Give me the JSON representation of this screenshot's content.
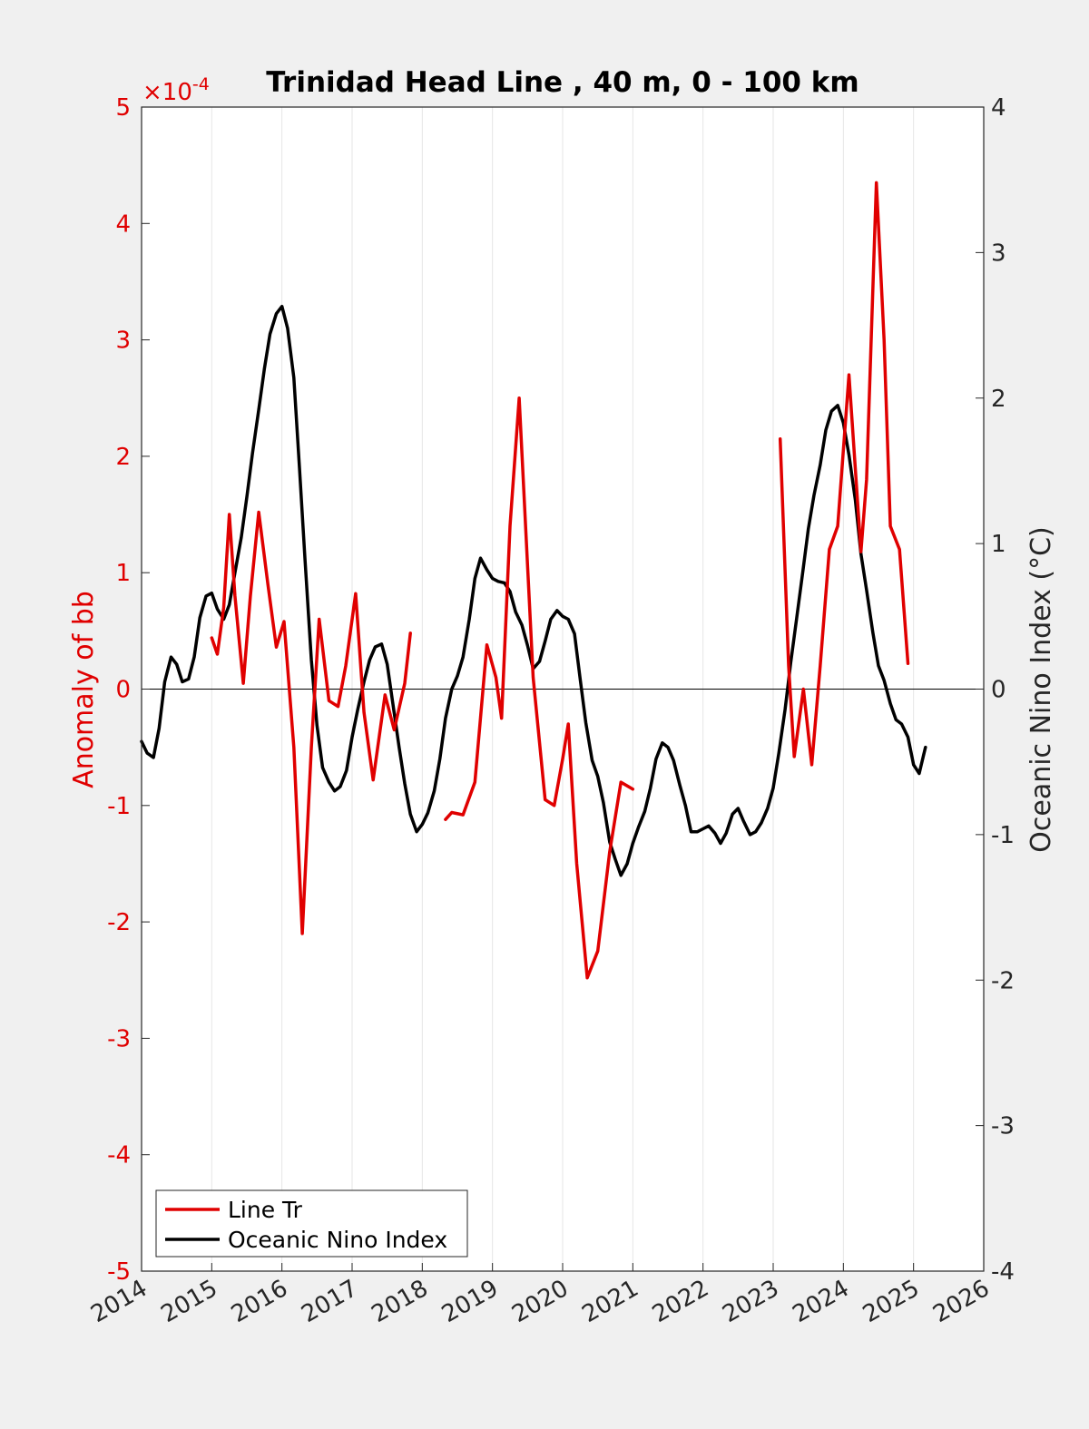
{
  "chart_data": {
    "type": "line",
    "title": "Trinidad Head Line , 40 m, 0 - 100 km",
    "ylabel_left": "Anomaly of bb",
    "ylabel_right": "Oceanic Nino Index (°C)",
    "left_multiplier_base": "×10",
    "left_multiplier_exp": "-4",
    "xlim": [
      2014,
      2026
    ],
    "ylim_left": [
      -5,
      5
    ],
    "ylim_right": [
      -4,
      4
    ],
    "x_ticks": [
      "2014",
      "2015",
      "2016",
      "2017",
      "2018",
      "2019",
      "2020",
      "2021",
      "2022",
      "2023",
      "2024",
      "2025",
      "2026"
    ],
    "y_ticks_left": [
      "5",
      "4",
      "3",
      "2",
      "1",
      "0",
      "-1",
      "-2",
      "-3",
      "-4",
      "-5"
    ],
    "y_ticks_right": [
      "4",
      "3",
      "2",
      "1",
      "0",
      "-1",
      "-2",
      "-3",
      "-4"
    ],
    "grid": "vertical",
    "legend_position": "bottom-left",
    "series": [
      {
        "name": "Line Tr",
        "axis": "left",
        "color": "#e00000",
        "segments": [
          [
            [
              2015.0,
              0.44
            ],
            [
              2015.08,
              0.3
            ],
            [
              2015.17,
              0.7
            ],
            [
              2015.25,
              1.5
            ],
            [
              2015.33,
              0.8
            ],
            [
              2015.45,
              0.05
            ],
            [
              2015.55,
              0.8
            ],
            [
              2015.67,
              1.52
            ],
            [
              2015.8,
              0.9
            ],
            [
              2015.92,
              0.36
            ],
            [
              2016.03,
              0.58
            ],
            [
              2016.17,
              -0.5
            ],
            [
              2016.29,
              -2.1
            ],
            [
              2016.42,
              -0.5
            ],
            [
              2016.53,
              0.6
            ],
            [
              2016.67,
              -0.1
            ],
            [
              2016.8,
              -0.15
            ],
            [
              2016.91,
              0.2
            ],
            [
              2017.05,
              0.82
            ],
            [
              2017.17,
              -0.2
            ],
            [
              2017.3,
              -0.78
            ],
            [
              2017.47,
              -0.05
            ],
            [
              2017.6,
              -0.35
            ],
            [
              2017.75,
              0.05
            ],
            [
              2017.83,
              0.48
            ]
          ],
          [
            [
              2018.33,
              -1.12
            ],
            [
              2018.42,
              -1.06
            ],
            [
              2018.58,
              -1.08
            ],
            [
              2018.75,
              -0.8
            ],
            [
              2018.92,
              0.38
            ],
            [
              2019.05,
              0.1
            ],
            [
              2019.13,
              -0.25
            ],
            [
              2019.25,
              1.4
            ],
            [
              2019.38,
              2.5
            ],
            [
              2019.58,
              0.1
            ],
            [
              2019.75,
              -0.95
            ],
            [
              2019.88,
              -1.0
            ],
            [
              2020.0,
              -0.6
            ],
            [
              2020.08,
              -0.3
            ],
            [
              2020.2,
              -1.5
            ],
            [
              2020.35,
              -2.48
            ],
            [
              2020.5,
              -2.25
            ],
            [
              2020.67,
              -1.4
            ],
            [
              2020.83,
              -0.8
            ],
            [
              2021.0,
              -0.86
            ]
          ],
          [
            [
              2023.1,
              2.15
            ],
            [
              2023.22,
              0.2
            ],
            [
              2023.3,
              -0.58
            ],
            [
              2023.43,
              0.0
            ],
            [
              2023.55,
              -0.65
            ],
            [
              2023.67,
              0.2
            ],
            [
              2023.8,
              1.2
            ],
            [
              2023.92,
              1.4
            ],
            [
              2024.08,
              2.7
            ],
            [
              2024.25,
              1.18
            ],
            [
              2024.33,
              1.8
            ],
            [
              2024.47,
              4.35
            ],
            [
              2024.58,
              3.0
            ],
            [
              2024.67,
              1.4
            ],
            [
              2024.8,
              1.2
            ],
            [
              2024.92,
              0.22
            ]
          ]
        ]
      },
      {
        "name": "Oceanic Nino Index",
        "axis": "right",
        "color": "#000000",
        "segments": [
          [
            [
              2014.0,
              -0.36
            ],
            [
              2014.08,
              -0.44
            ],
            [
              2014.17,
              -0.47
            ],
            [
              2014.25,
              -0.27
            ],
            [
              2014.33,
              0.05
            ],
            [
              2014.42,
              0.22
            ],
            [
              2014.5,
              0.17
            ],
            [
              2014.58,
              0.05
            ],
            [
              2014.67,
              0.07
            ],
            [
              2014.75,
              0.22
            ],
            [
              2014.83,
              0.49
            ],
            [
              2014.92,
              0.64
            ],
            [
              2015.0,
              0.66
            ],
            [
              2015.08,
              0.55
            ],
            [
              2015.17,
              0.48
            ],
            [
              2015.25,
              0.58
            ],
            [
              2015.33,
              0.8
            ],
            [
              2015.42,
              1.04
            ],
            [
              2015.5,
              1.32
            ],
            [
              2015.58,
              1.62
            ],
            [
              2015.67,
              1.92
            ],
            [
              2015.75,
              2.2
            ],
            [
              2015.83,
              2.44
            ],
            [
              2015.92,
              2.58
            ],
            [
              2016.0,
              2.63
            ],
            [
              2016.08,
              2.48
            ],
            [
              2016.17,
              2.14
            ],
            [
              2016.25,
              1.52
            ],
            [
              2016.33,
              0.88
            ],
            [
              2016.42,
              0.2
            ],
            [
              2016.5,
              -0.25
            ],
            [
              2016.58,
              -0.54
            ],
            [
              2016.67,
              -0.64
            ],
            [
              2016.75,
              -0.7
            ],
            [
              2016.83,
              -0.67
            ],
            [
              2016.92,
              -0.56
            ],
            [
              2017.0,
              -0.33
            ],
            [
              2017.08,
              -0.14
            ],
            [
              2017.17,
              0.05
            ],
            [
              2017.25,
              0.2
            ],
            [
              2017.33,
              0.29
            ],
            [
              2017.42,
              0.31
            ],
            [
              2017.5,
              0.17
            ],
            [
              2017.58,
              -0.1
            ],
            [
              2017.67,
              -0.4
            ],
            [
              2017.75,
              -0.65
            ],
            [
              2017.83,
              -0.86
            ],
            [
              2017.92,
              -0.98
            ],
            [
              2018.0,
              -0.93
            ],
            [
              2018.08,
              -0.85
            ],
            [
              2018.17,
              -0.7
            ],
            [
              2018.25,
              -0.48
            ],
            [
              2018.33,
              -0.2
            ],
            [
              2018.42,
              0.0
            ],
            [
              2018.5,
              0.09
            ],
            [
              2018.58,
              0.22
            ],
            [
              2018.67,
              0.48
            ],
            [
              2018.75,
              0.76
            ],
            [
              2018.83,
              0.9
            ],
            [
              2018.92,
              0.82
            ],
            [
              2019.0,
              0.76
            ],
            [
              2019.08,
              0.74
            ],
            [
              2019.17,
              0.73
            ],
            [
              2019.25,
              0.67
            ],
            [
              2019.33,
              0.53
            ],
            [
              2019.42,
              0.44
            ],
            [
              2019.5,
              0.3
            ],
            [
              2019.58,
              0.14
            ],
            [
              2019.67,
              0.19
            ],
            [
              2019.75,
              0.33
            ],
            [
              2019.83,
              0.48
            ],
            [
              2019.92,
              0.54
            ],
            [
              2020.0,
              0.5
            ],
            [
              2020.08,
              0.48
            ],
            [
              2020.17,
              0.38
            ],
            [
              2020.25,
              0.07
            ],
            [
              2020.33,
              -0.23
            ],
            [
              2020.42,
              -0.49
            ],
            [
              2020.5,
              -0.6
            ],
            [
              2020.58,
              -0.78
            ],
            [
              2020.67,
              -1.05
            ],
            [
              2020.75,
              -1.17
            ],
            [
              2020.83,
              -1.28
            ],
            [
              2020.92,
              -1.2
            ],
            [
              2021.0,
              -1.06
            ],
            [
              2021.08,
              -0.95
            ],
            [
              2021.17,
              -0.84
            ],
            [
              2021.25,
              -0.68
            ],
            [
              2021.33,
              -0.48
            ],
            [
              2021.42,
              -0.37
            ],
            [
              2021.5,
              -0.4
            ],
            [
              2021.58,
              -0.49
            ],
            [
              2021.67,
              -0.66
            ],
            [
              2021.75,
              -0.8
            ],
            [
              2021.83,
              -0.98
            ],
            [
              2021.92,
              -0.98
            ],
            [
              2022.0,
              -0.96
            ],
            [
              2022.08,
              -0.94
            ],
            [
              2022.17,
              -0.99
            ],
            [
              2022.25,
              -1.06
            ],
            [
              2022.33,
              -0.99
            ],
            [
              2022.42,
              -0.86
            ],
            [
              2022.5,
              -0.82
            ],
            [
              2022.58,
              -0.91
            ],
            [
              2022.67,
              -1.0
            ],
            [
              2022.75,
              -0.98
            ],
            [
              2022.83,
              -0.92
            ],
            [
              2022.92,
              -0.82
            ],
            [
              2023.0,
              -0.68
            ],
            [
              2023.08,
              -0.44
            ],
            [
              2023.17,
              -0.14
            ],
            [
              2023.25,
              0.18
            ],
            [
              2023.33,
              0.47
            ],
            [
              2023.42,
              0.8
            ],
            [
              2023.5,
              1.1
            ],
            [
              2023.58,
              1.33
            ],
            [
              2023.67,
              1.54
            ],
            [
              2023.75,
              1.78
            ],
            [
              2023.83,
              1.91
            ],
            [
              2023.92,
              1.95
            ],
            [
              2024.0,
              1.83
            ],
            [
              2024.08,
              1.61
            ],
            [
              2024.17,
              1.3
            ],
            [
              2024.25,
              0.93
            ],
            [
              2024.33,
              0.68
            ],
            [
              2024.42,
              0.39
            ],
            [
              2024.5,
              0.16
            ],
            [
              2024.58,
              0.06
            ],
            [
              2024.67,
              -0.1
            ],
            [
              2024.75,
              -0.21
            ],
            [
              2024.83,
              -0.24
            ],
            [
              2024.92,
              -0.33
            ],
            [
              2025.0,
              -0.52
            ],
            [
              2025.08,
              -0.58
            ],
            [
              2025.17,
              -0.4
            ]
          ]
        ]
      }
    ]
  }
}
